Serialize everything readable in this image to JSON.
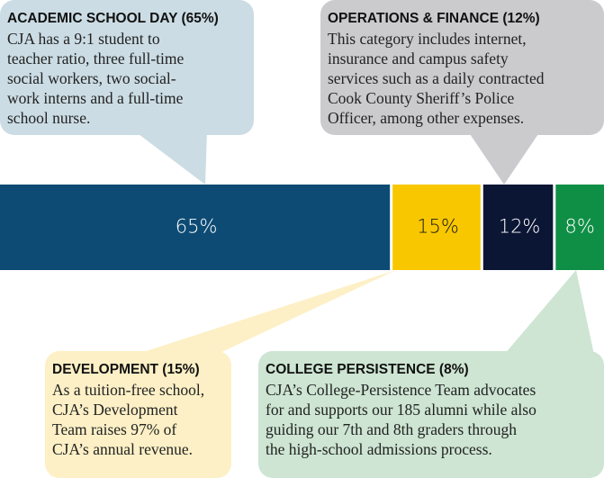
{
  "chart_data": {
    "type": "stacked-bar",
    "xlim": [
      0,
      100
    ],
    "series": [
      {
        "name": "ACADEMIC SCHOOL DAY (65%)",
        "color": "#0d4b74",
        "values": [
          65
        ],
        "value_labels": [
          "65%"
        ],
        "description": [
          "CJA has a 9:1 student to",
          "teacher ratio, three full-time",
          "social workers, two social-",
          "work interns and a full-time",
          "school nurse."
        ]
      },
      {
        "name": "DEVELOPMENT (15%)",
        "color": "#f8c700",
        "values": [
          15
        ],
        "value_labels": [
          "15%"
        ],
        "description": [
          "As a tuition-free school,",
          "CJA’s Development",
          "Team raises 97% of",
          "CJA’s annual revenue."
        ]
      },
      {
        "name": "OPERATIONS & FINANCE (12%)",
        "color": "#0b1534",
        "values": [
          12
        ],
        "value_labels": [
          "12%"
        ],
        "description": [
          "This category includes internet,",
          "insurance and campus safety",
          "services such as a daily contracted",
          "Cook County Sheriff’s Police",
          "Officer, among other expenses."
        ]
      },
      {
        "name": "COLLEGE PERSISTENCE (8%)",
        "color": "#0f8f46",
        "values": [
          8
        ],
        "value_labels": [
          "8%"
        ],
        "description": [
          "CJA’s College-Persistence Team advocates",
          "for and supports our 185 alumni while also",
          "guiding our 7th and 8th graders through",
          "the high-school admissions process."
        ]
      }
    ]
  }
}
